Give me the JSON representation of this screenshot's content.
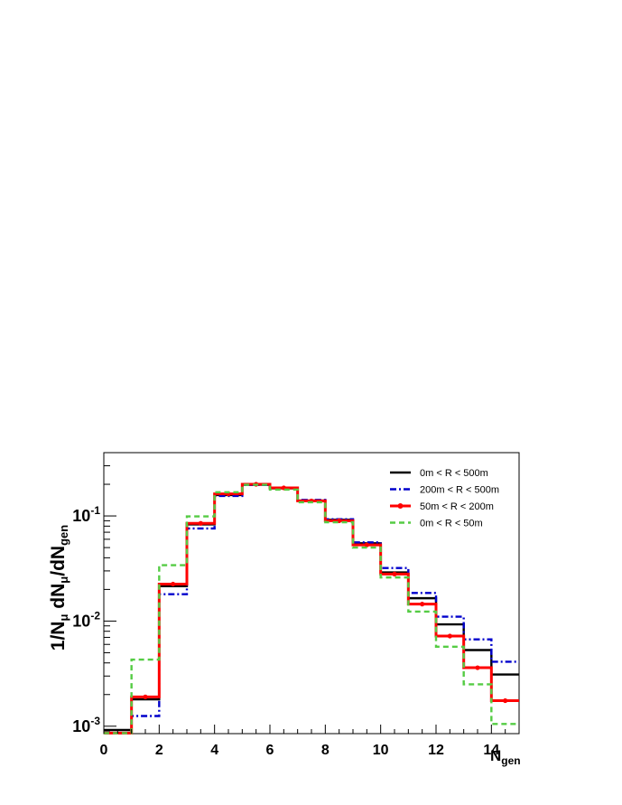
{
  "chart_data": {
    "type": "line",
    "title": "",
    "xlabel_main": "N",
    "xlabel_sub": "gen",
    "ylabel_parts": [
      "1/N",
      "μ",
      " dN",
      "μ",
      "/dN",
      "gen"
    ],
    "xlim": [
      0,
      15
    ],
    "ylim": [
      0.00085,
      0.4
    ],
    "yscale": "log",
    "grid": false,
    "legend_position": "top-right",
    "x_ticks": [
      0,
      2,
      4,
      6,
      8,
      10,
      12,
      14
    ],
    "x_tick_labels": [
      "0",
      "2",
      "4",
      "6",
      "8",
      "10",
      "12",
      "14"
    ],
    "y_ticks": [
      0.001,
      0.01,
      0.1
    ],
    "y_tick_labels": [
      {
        "base": "10",
        "exp": "-3"
      },
      {
        "base": "10",
        "exp": "-2"
      },
      {
        "base": "10",
        "exp": "-1"
      }
    ],
    "bin_edges": [
      0,
      1,
      2,
      3,
      4,
      5,
      6,
      7,
      8,
      9,
      10,
      11,
      12,
      13,
      14,
      15
    ],
    "series": [
      {
        "name": "0m < R < 500m",
        "color": "#000000",
        "style": "solid",
        "markers": false,
        "values": [
          0.00092,
          0.0018,
          0.0215,
          0.083,
          0.158,
          0.198,
          0.183,
          0.14,
          0.092,
          0.055,
          0.029,
          0.0165,
          0.0093,
          0.0053,
          0.0031
        ]
      },
      {
        "name": "200m < R < 500m",
        "color": "#0000cc",
        "style": "dashdot",
        "markers": false,
        "values": [
          0.00086,
          0.00125,
          0.018,
          0.076,
          0.155,
          0.197,
          0.185,
          0.142,
          0.093,
          0.056,
          0.032,
          0.0185,
          0.011,
          0.0067,
          0.0041
        ]
      },
      {
        "name": "50m < R < 200m",
        "color": "#ff0000",
        "style": "solid",
        "markers": true,
        "values": [
          0.00086,
          0.0019,
          0.0225,
          0.085,
          0.162,
          0.2,
          0.185,
          0.139,
          0.09,
          0.053,
          0.028,
          0.0145,
          0.0072,
          0.0036,
          0.00175
        ]
      },
      {
        "name": "0m < R < 50m",
        "color": "#55cc44",
        "style": "dashed",
        "markers": false,
        "values": [
          0.00086,
          0.0043,
          0.034,
          0.099,
          0.168,
          0.198,
          0.178,
          0.135,
          0.087,
          0.05,
          0.026,
          0.0123,
          0.0057,
          0.0025,
          0.00105
        ]
      }
    ]
  }
}
